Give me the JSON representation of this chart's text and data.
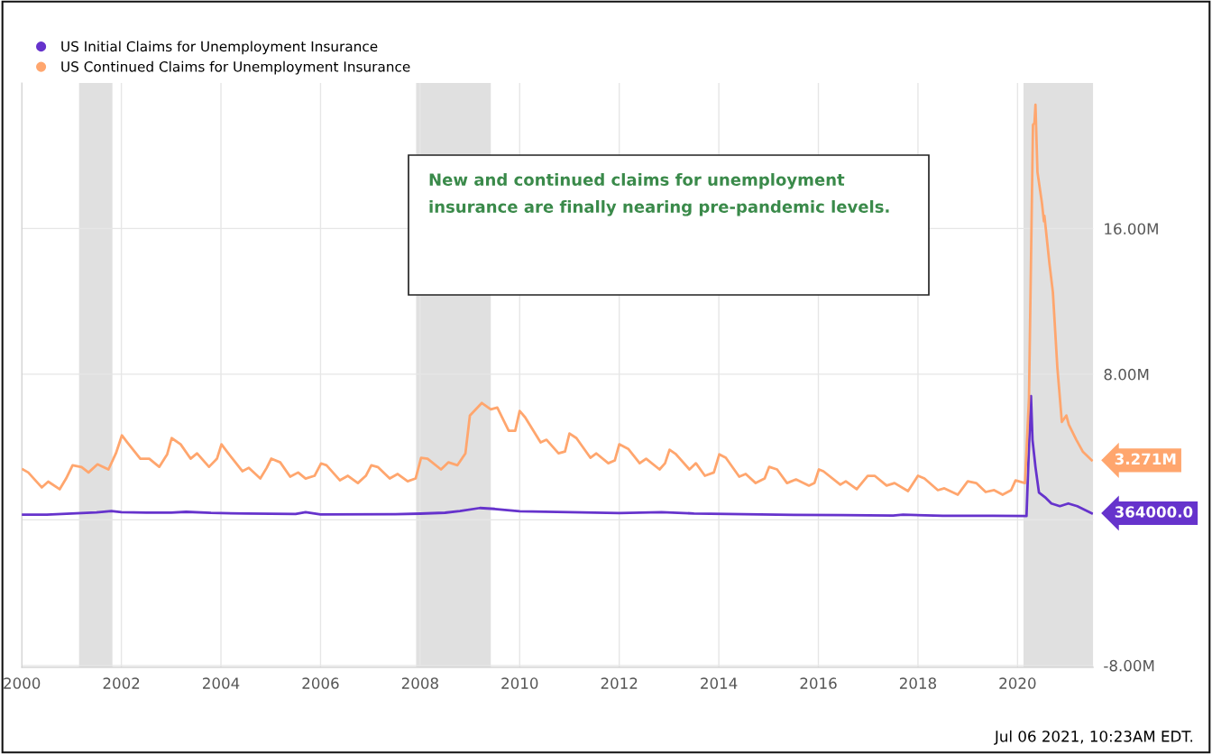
{
  "chart_data": {
    "type": "line",
    "series": [
      {
        "name": "US Initial Claims for Unemployment Insurance",
        "color": "#6633cc",
        "x": [
          2000.0,
          2000.5,
          2001.0,
          2001.5,
          2001.8,
          2002.0,
          2002.5,
          2003.0,
          2003.3,
          2003.8,
          2004.5,
          2005.5,
          2005.7,
          2006.0,
          2007.5,
          2008.0,
          2008.5,
          2008.8,
          2009.2,
          2009.5,
          2010.0,
          2011.0,
          2012.0,
          2012.85,
          2013.5,
          2014.5,
          2015.5,
          2016.5,
          2017.5,
          2017.7,
          2018.5,
          2019.5,
          2020.18,
          2020.22,
          2020.27,
          2020.3,
          2020.36,
          2020.43,
          2020.57,
          2020.68,
          2020.85,
          2021.02,
          2021.2,
          2021.49
        ],
        "values": [
          290000,
          290000,
          350000,
          410000,
          480000,
          420000,
          400000,
          400000,
          440000,
          380000,
          350000,
          320000,
          420000,
          300000,
          310000,
          340000,
          390000,
          480000,
          650000,
          600000,
          470000,
          420000,
          370000,
          420000,
          350000,
          310000,
          270000,
          260000,
          240000,
          280000,
          220000,
          220000,
          210000,
          3300000,
          6800000,
          4400000,
          2900000,
          1500000,
          1200000,
          900000,
          750000,
          900000,
          750000,
          364000
        ]
      },
      {
        "name": "US Continued Claims for Unemployment Insurance",
        "color": "#ffa66e",
        "x": [
          2000.02,
          2000.13,
          2000.4,
          2000.53,
          2000.76,
          2000.89,
          2001.02,
          2001.2,
          2001.34,
          2001.52,
          2001.74,
          2001.89,
          2002.01,
          2002.12,
          2002.38,
          2002.56,
          2002.76,
          2002.92,
          2003.01,
          2003.19,
          2003.39,
          2003.52,
          2003.76,
          2003.92,
          2004.01,
          2004.12,
          2004.43,
          2004.56,
          2004.79,
          2004.92,
          2005.01,
          2005.19,
          2005.39,
          2005.55,
          2005.7,
          2005.88,
          2006.01,
          2006.12,
          2006.39,
          2006.55,
          2006.75,
          2006.91,
          2007.02,
          2007.15,
          2007.39,
          2007.55,
          2007.75,
          2007.91,
          2008.02,
          2008.15,
          2008.42,
          2008.57,
          2008.75,
          2008.91,
          2009.0,
          2009.24,
          2009.42,
          2009.55,
          2009.78,
          2009.91,
          2010.0,
          2010.11,
          2010.42,
          2010.54,
          2010.78,
          2010.91,
          2011.0,
          2011.14,
          2011.42,
          2011.54,
          2011.78,
          2011.91,
          2012.0,
          2012.18,
          2012.41,
          2012.54,
          2012.81,
          2012.92,
          2013.01,
          2013.14,
          2013.41,
          2013.54,
          2013.72,
          2013.9,
          2014.01,
          2014.14,
          2014.41,
          2014.54,
          2014.74,
          2014.92,
          2015.01,
          2015.17,
          2015.37,
          2015.55,
          2015.81,
          2015.92,
          2016.01,
          2016.1,
          2016.44,
          2016.55,
          2016.77,
          2016.99,
          2017.13,
          2017.37,
          2017.53,
          2017.8,
          2018.0,
          2018.13,
          2018.4,
          2018.53,
          2018.8,
          2019.0,
          2019.17,
          2019.36,
          2019.53,
          2019.7,
          2019.87,
          2019.96,
          2020.15,
          2020.23,
          2020.31,
          2020.34,
          2020.36,
          2020.4,
          2020.49,
          2020.53,
          2020.54,
          2020.64,
          2020.71,
          2020.8,
          2020.89,
          2020.98,
          2021.03,
          2021.18,
          2021.31,
          2021.49
        ],
        "values": [
          2770000,
          2600000,
          1780000,
          2100000,
          1680000,
          2270000,
          3000000,
          2900000,
          2600000,
          3050000,
          2770000,
          3650000,
          4640000,
          4250000,
          3360000,
          3360000,
          2910000,
          3600000,
          4490000,
          4150000,
          3360000,
          3650000,
          2910000,
          3360000,
          4150000,
          3750000,
          2670000,
          2860000,
          2270000,
          2860000,
          3360000,
          3160000,
          2370000,
          2600000,
          2270000,
          2420000,
          3100000,
          3000000,
          2170000,
          2420000,
          2020000,
          2420000,
          3000000,
          2900000,
          2270000,
          2520000,
          2120000,
          2270000,
          3410000,
          3360000,
          2770000,
          3160000,
          3000000,
          3650000,
          5730000,
          6420000,
          6070000,
          6170000,
          4890000,
          4890000,
          5980000,
          5630000,
          4250000,
          4400000,
          3650000,
          3750000,
          4740000,
          4490000,
          3410000,
          3650000,
          3110000,
          3260000,
          4150000,
          3900000,
          3110000,
          3360000,
          2770000,
          3110000,
          3850000,
          3600000,
          2770000,
          3110000,
          2420000,
          2600000,
          3600000,
          3410000,
          2370000,
          2520000,
          2020000,
          2270000,
          2910000,
          2770000,
          2020000,
          2220000,
          1880000,
          2020000,
          2770000,
          2670000,
          1930000,
          2120000,
          1680000,
          2420000,
          2420000,
          1880000,
          2020000,
          1580000,
          2420000,
          2270000,
          1630000,
          1730000,
          1380000,
          2120000,
          2020000,
          1530000,
          1630000,
          1380000,
          1630000,
          2170000,
          2020000,
          6720000,
          21700000,
          21800000,
          22800000,
          19100000,
          17400000,
          16400000,
          16700000,
          14100000,
          12500000,
          8350000,
          5380000,
          5730000,
          5230000,
          4400000,
          3750000,
          3271000
        ]
      }
    ],
    "xlim": [
      2000,
      2021.52
    ],
    "xticks": [
      2000,
      2002,
      2004,
      2006,
      2008,
      2010,
      2012,
      2014,
      2016,
      2018,
      2020
    ],
    "ylim": [
      -8100000,
      24000000
    ],
    "yticks": [
      {
        "value": -8000000,
        "label": "-8.00M"
      },
      {
        "value": 0,
        "label": null
      },
      {
        "value": 8000000,
        "label": "8.00M"
      },
      {
        "value": 16000000,
        "label": "16.00M"
      }
    ],
    "bands": [
      {
        "axis": "x",
        "from": 2001.15,
        "to": 2001.82,
        "color": "#e0e0e0"
      },
      {
        "axis": "x",
        "from": 2007.92,
        "to": 2009.42,
        "color": "#e0e0e0"
      },
      {
        "axis": "x",
        "from": 2020.12,
        "to": 2021.52,
        "color": "#e0e0e0"
      }
    ],
    "annotations": [
      "New and continued claims for unemployment insurance are finally nearing pre-pandemic levels.",
      "Jul 06 2021, 10:23AM EDT.",
      {
        "text": "3.271M",
        "x": 2021.49,
        "y": 3271000
      },
      {
        "text": "364000.0",
        "x": 2021.49,
        "y": 364000
      }
    ],
    "grid": true,
    "legend": "top left",
    "marker": "none",
    "line_style": "solid"
  }
}
